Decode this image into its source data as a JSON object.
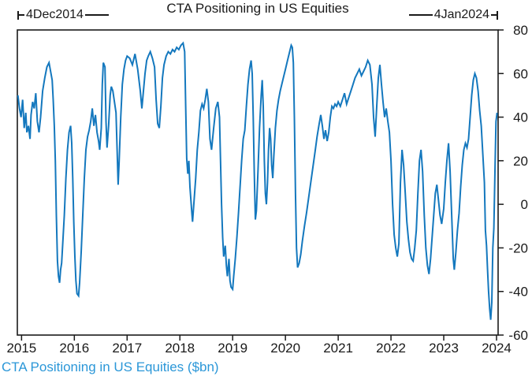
{
  "chart_data": {
    "type": "line",
    "title": "CTA Positioning in US Equities",
    "caption": "CTA Positioning in US Equities ($bn)",
    "range_start_label": "4Dec2014",
    "range_end_label": "4Jan2024",
    "xlabel": "",
    "ylabel": "",
    "xlim": [
      2014.92,
      2024.03
    ],
    "ylim": [
      -60,
      80
    ],
    "x_ticks": [
      2015,
      2016,
      2017,
      2018,
      2019,
      2020,
      2021,
      2022,
      2023,
      2024
    ],
    "y_ticks": [
      80,
      60,
      40,
      20,
      0,
      -20,
      -40,
      -60
    ],
    "grid": false,
    "legend_position": "none",
    "axis_color": "#1a1a1a",
    "line_color": "#1478be",
    "caption_color": "#2b97d8",
    "title_color": "#1a1a1a",
    "series": [
      {
        "name": "CTA Positioning in US Equities ($bn)",
        "points": [
          [
            2014.93,
            50
          ],
          [
            2014.96,
            44
          ],
          [
            2014.99,
            40
          ],
          [
            2015.02,
            48
          ],
          [
            2015.05,
            35
          ],
          [
            2015.08,
            42
          ],
          [
            2015.1,
            33
          ],
          [
            2015.13,
            36
          ],
          [
            2015.16,
            30
          ],
          [
            2015.18,
            41
          ],
          [
            2015.21,
            47
          ],
          [
            2015.24,
            44
          ],
          [
            2015.27,
            51
          ],
          [
            2015.3,
            38
          ],
          [
            2015.33,
            33
          ],
          [
            2015.36,
            40
          ],
          [
            2015.4,
            52
          ],
          [
            2015.44,
            58
          ],
          [
            2015.48,
            63
          ],
          [
            2015.52,
            65
          ],
          [
            2015.55,
            61
          ],
          [
            2015.58,
            57
          ],
          [
            2015.6,
            48
          ],
          [
            2015.62,
            36
          ],
          [
            2015.64,
            20
          ],
          [
            2015.66,
            -5
          ],
          [
            2015.68,
            -26
          ],
          [
            2015.7,
            -33
          ],
          [
            2015.72,
            -36
          ],
          [
            2015.74,
            -30
          ],
          [
            2015.76,
            -27
          ],
          [
            2015.78,
            -18
          ],
          [
            2015.81,
            -5
          ],
          [
            2015.84,
            12
          ],
          [
            2015.87,
            25
          ],
          [
            2015.9,
            33
          ],
          [
            2015.93,
            36
          ],
          [
            2015.95,
            28
          ],
          [
            2015.97,
            12
          ],
          [
            2015.99,
            -8
          ],
          [
            2016.01,
            -24
          ],
          [
            2016.03,
            -35
          ],
          [
            2016.05,
            -41
          ],
          [
            2016.08,
            -42
          ],
          [
            2016.1,
            -36
          ],
          [
            2016.13,
            -22
          ],
          [
            2016.16,
            -5
          ],
          [
            2016.19,
            12
          ],
          [
            2016.22,
            25
          ],
          [
            2016.25,
            31
          ],
          [
            2016.28,
            34
          ],
          [
            2016.31,
            38
          ],
          [
            2016.34,
            44
          ],
          [
            2016.37,
            36
          ],
          [
            2016.4,
            41
          ],
          [
            2016.43,
            33
          ],
          [
            2016.46,
            29
          ],
          [
            2016.48,
            25
          ],
          [
            2016.51,
            35
          ],
          [
            2016.53,
            55
          ],
          [
            2016.55,
            65
          ],
          [
            2016.58,
            63
          ],
          [
            2016.6,
            38
          ],
          [
            2016.62,
            26
          ],
          [
            2016.65,
            36
          ],
          [
            2016.68,
            50
          ],
          [
            2016.7,
            54
          ],
          [
            2016.73,
            52
          ],
          [
            2016.76,
            47
          ],
          [
            2016.79,
            42
          ],
          [
            2016.81,
            25
          ],
          [
            2016.83,
            9
          ],
          [
            2016.85,
            20
          ],
          [
            2016.88,
            40
          ],
          [
            2016.91,
            55
          ],
          [
            2016.94,
            62
          ],
          [
            2016.97,
            66
          ],
          [
            2017.0,
            68
          ],
          [
            2017.05,
            67
          ],
          [
            2017.1,
            64
          ],
          [
            2017.15,
            69
          ],
          [
            2017.2,
            62
          ],
          [
            2017.25,
            52
          ],
          [
            2017.28,
            44
          ],
          [
            2017.31,
            52
          ],
          [
            2017.34,
            60
          ],
          [
            2017.37,
            66
          ],
          [
            2017.4,
            68
          ],
          [
            2017.44,
            70
          ],
          [
            2017.48,
            67
          ],
          [
            2017.52,
            63
          ],
          [
            2017.55,
            48
          ],
          [
            2017.58,
            37
          ],
          [
            2017.61,
            35
          ],
          [
            2017.64,
            45
          ],
          [
            2017.67,
            58
          ],
          [
            2017.7,
            64
          ],
          [
            2017.74,
            68
          ],
          [
            2017.78,
            70
          ],
          [
            2017.82,
            69
          ],
          [
            2017.86,
            71
          ],
          [
            2017.9,
            70
          ],
          [
            2017.94,
            72
          ],
          [
            2017.98,
            71
          ],
          [
            2018.02,
            73
          ],
          [
            2018.06,
            74
          ],
          [
            2018.09,
            70
          ],
          [
            2018.11,
            45
          ],
          [
            2018.13,
            21
          ],
          [
            2018.15,
            14
          ],
          [
            2018.17,
            20
          ],
          [
            2018.19,
            8
          ],
          [
            2018.22,
            -2
          ],
          [
            2018.24,
            -8
          ],
          [
            2018.27,
            2
          ],
          [
            2018.3,
            12
          ],
          [
            2018.33,
            25
          ],
          [
            2018.36,
            33
          ],
          [
            2018.39,
            43
          ],
          [
            2018.42,
            46
          ],
          [
            2018.45,
            44
          ],
          [
            2018.48,
            48
          ],
          [
            2018.51,
            53
          ],
          [
            2018.54,
            47
          ],
          [
            2018.57,
            30
          ],
          [
            2018.6,
            25
          ],
          [
            2018.64,
            35
          ],
          [
            2018.68,
            44
          ],
          [
            2018.72,
            47
          ],
          [
            2018.75,
            40
          ],
          [
            2018.77,
            20
          ],
          [
            2018.79,
            0
          ],
          [
            2018.81,
            -15
          ],
          [
            2018.83,
            -24
          ],
          [
            2018.86,
            -19
          ],
          [
            2018.88,
            -28
          ],
          [
            2018.9,
            -33
          ],
          [
            2018.93,
            -25
          ],
          [
            2018.95,
            -35
          ],
          [
            2018.97,
            -38
          ],
          [
            2019.0,
            -39
          ],
          [
            2019.02,
            -33
          ],
          [
            2019.05,
            -25
          ],
          [
            2019.08,
            -15
          ],
          [
            2019.11,
            -4
          ],
          [
            2019.14,
            8
          ],
          [
            2019.17,
            20
          ],
          [
            2019.2,
            30
          ],
          [
            2019.23,
            34
          ],
          [
            2019.26,
            45
          ],
          [
            2019.29,
            55
          ],
          [
            2019.32,
            62
          ],
          [
            2019.35,
            66
          ],
          [
            2019.37,
            60
          ],
          [
            2019.39,
            40
          ],
          [
            2019.41,
            15
          ],
          [
            2019.43,
            -7
          ],
          [
            2019.45,
            -3
          ],
          [
            2019.48,
            15
          ],
          [
            2019.51,
            35
          ],
          [
            2019.54,
            50
          ],
          [
            2019.56,
            57
          ],
          [
            2019.58,
            45
          ],
          [
            2019.6,
            20
          ],
          [
            2019.62,
            5
          ],
          [
            2019.64,
            0
          ],
          [
            2019.66,
            10
          ],
          [
            2019.68,
            25
          ],
          [
            2019.7,
            35
          ],
          [
            2019.72,
            30
          ],
          [
            2019.74,
            18
          ],
          [
            2019.76,
            12
          ],
          [
            2019.78,
            22
          ],
          [
            2019.81,
            35
          ],
          [
            2019.84,
            43
          ],
          [
            2019.87,
            48
          ],
          [
            2019.9,
            52
          ],
          [
            2019.93,
            55
          ],
          [
            2019.96,
            58
          ],
          [
            2020.0,
            62
          ],
          [
            2020.04,
            66
          ],
          [
            2020.08,
            70
          ],
          [
            2020.11,
            73
          ],
          [
            2020.13,
            72
          ],
          [
            2020.15,
            65
          ],
          [
            2020.17,
            40
          ],
          [
            2020.19,
            5
          ],
          [
            2020.21,
            -20
          ],
          [
            2020.23,
            -29
          ],
          [
            2020.26,
            -27
          ],
          [
            2020.29,
            -23
          ],
          [
            2020.32,
            -17
          ],
          [
            2020.36,
            -10
          ],
          [
            2020.4,
            -4
          ],
          [
            2020.44,
            3
          ],
          [
            2020.48,
            10
          ],
          [
            2020.52,
            17
          ],
          [
            2020.56,
            24
          ],
          [
            2020.6,
            31
          ],
          [
            2020.64,
            37
          ],
          [
            2020.67,
            41
          ],
          [
            2020.7,
            36
          ],
          [
            2020.73,
            30
          ],
          [
            2020.76,
            34
          ],
          [
            2020.79,
            29
          ],
          [
            2020.82,
            33
          ],
          [
            2020.85,
            40
          ],
          [
            2020.88,
            45
          ],
          [
            2020.91,
            44
          ],
          [
            2020.94,
            46
          ],
          [
            2020.97,
            45
          ],
          [
            2021.0,
            47
          ],
          [
            2021.04,
            45
          ],
          [
            2021.08,
            48
          ],
          [
            2021.12,
            51
          ],
          [
            2021.16,
            46
          ],
          [
            2021.2,
            49
          ],
          [
            2021.24,
            52
          ],
          [
            2021.28,
            55
          ],
          [
            2021.32,
            58
          ],
          [
            2021.36,
            60
          ],
          [
            2021.4,
            62
          ],
          [
            2021.44,
            59
          ],
          [
            2021.48,
            61
          ],
          [
            2021.52,
            63
          ],
          [
            2021.56,
            66
          ],
          [
            2021.6,
            64
          ],
          [
            2021.64,
            55
          ],
          [
            2021.67,
            40
          ],
          [
            2021.7,
            31
          ],
          [
            2021.73,
            45
          ],
          [
            2021.76,
            58
          ],
          [
            2021.79,
            64
          ],
          [
            2021.82,
            55
          ],
          [
            2021.85,
            47
          ],
          [
            2021.88,
            40
          ],
          [
            2021.91,
            44
          ],
          [
            2021.94,
            38
          ],
          [
            2021.97,
            33
          ],
          [
            2022.0,
            20
          ],
          [
            2022.03,
            0
          ],
          [
            2022.06,
            -14
          ],
          [
            2022.09,
            -20
          ],
          [
            2022.12,
            -24
          ],
          [
            2022.15,
            -18
          ],
          [
            2022.18,
            10
          ],
          [
            2022.21,
            25
          ],
          [
            2022.24,
            18
          ],
          [
            2022.27,
            5
          ],
          [
            2022.3,
            -8
          ],
          [
            2022.33,
            -16
          ],
          [
            2022.36,
            -22
          ],
          [
            2022.39,
            -25
          ],
          [
            2022.42,
            -26
          ],
          [
            2022.45,
            -20
          ],
          [
            2022.48,
            -12
          ],
          [
            2022.51,
            5
          ],
          [
            2022.54,
            20
          ],
          [
            2022.57,
            25
          ],
          [
            2022.6,
            15
          ],
          [
            2022.63,
            -5
          ],
          [
            2022.66,
            -20
          ],
          [
            2022.69,
            -28
          ],
          [
            2022.72,
            -32
          ],
          [
            2022.75,
            -25
          ],
          [
            2022.78,
            -15
          ],
          [
            2022.81,
            -5
          ],
          [
            2022.84,
            5
          ],
          [
            2022.87,
            9
          ],
          [
            2022.9,
            2
          ],
          [
            2022.93,
            -5
          ],
          [
            2022.96,
            -9
          ],
          [
            2023.0,
            -2
          ],
          [
            2023.03,
            10
          ],
          [
            2023.06,
            20
          ],
          [
            2023.09,
            28
          ],
          [
            2023.12,
            15
          ],
          [
            2023.15,
            -5
          ],
          [
            2023.18,
            -25
          ],
          [
            2023.2,
            -30
          ],
          [
            2023.23,
            -22
          ],
          [
            2023.26,
            -12
          ],
          [
            2023.29,
            -4
          ],
          [
            2023.32,
            8
          ],
          [
            2023.35,
            18
          ],
          [
            2023.38,
            25
          ],
          [
            2023.41,
            28
          ],
          [
            2023.44,
            26
          ],
          [
            2023.47,
            30
          ],
          [
            2023.5,
            40
          ],
          [
            2023.53,
            50
          ],
          [
            2023.56,
            57
          ],
          [
            2023.59,
            60
          ],
          [
            2023.62,
            58
          ],
          [
            2023.65,
            52
          ],
          [
            2023.68,
            43
          ],
          [
            2023.71,
            36
          ],
          [
            2023.74,
            23
          ],
          [
            2023.77,
            10
          ],
          [
            2023.79,
            -12
          ],
          [
            2023.81,
            -19
          ],
          [
            2023.83,
            -30
          ],
          [
            2023.85,
            -40
          ],
          [
            2023.87,
            -48
          ],
          [
            2023.89,
            -53
          ],
          [
            2023.91,
            -45
          ],
          [
            2023.93,
            -20
          ],
          [
            2023.95,
            -11
          ],
          [
            2023.97,
            15
          ],
          [
            2023.99,
            38
          ],
          [
            2024.01,
            42
          ]
        ]
      }
    ]
  }
}
